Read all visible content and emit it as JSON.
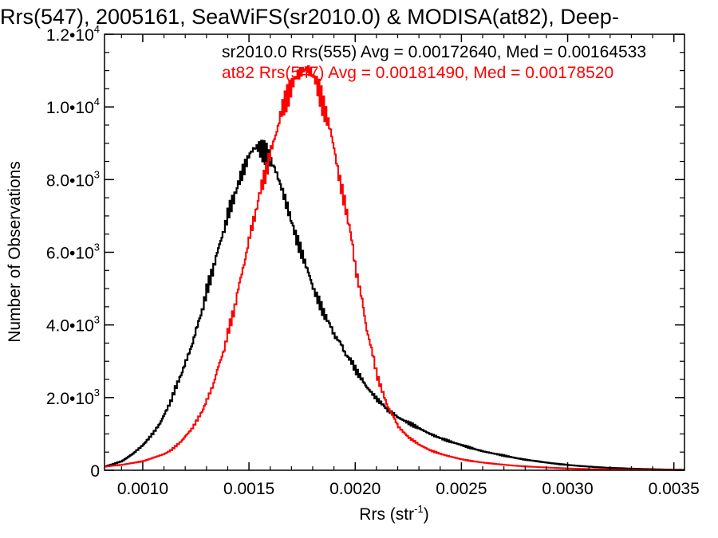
{
  "chart_data": {
    "type": "line",
    "title": "Rrs(547), 2005161, SeaWiFS(sr2010.0) & MODISA(at82), Deep-",
    "xlabel": "Rrs (str",
    "xlabel_sup": "-1",
    "xlabel_close": ")",
    "ylabel": "Number of Observations",
    "xlim": [
      0.00082,
      0.00355
    ],
    "ylim": [
      0,
      12000
    ],
    "x_ticks": [
      {
        "value": 0.001,
        "label": "0.0010"
      },
      {
        "value": 0.0015,
        "label": "0.0015"
      },
      {
        "value": 0.002,
        "label": "0.0020"
      },
      {
        "value": 0.0025,
        "label": "0.0025"
      },
      {
        "value": 0.003,
        "label": "0.0030"
      },
      {
        "value": 0.0035,
        "label": "0.0035"
      }
    ],
    "y_ticks": [
      {
        "value": 0,
        "mant": "0",
        "exp": ""
      },
      {
        "value": 2000,
        "mant": "2.0•10",
        "exp": "3"
      },
      {
        "value": 4000,
        "mant": "4.0•10",
        "exp": "3"
      },
      {
        "value": 6000,
        "mant": "6.0•10",
        "exp": "3"
      },
      {
        "value": 8000,
        "mant": "8.0•10",
        "exp": "3"
      },
      {
        "value": 10000,
        "mant": "1.0•10",
        "exp": "4"
      },
      {
        "value": 12000,
        "mant": "1.2•10",
        "exp": "4"
      }
    ],
    "legend": "top-right",
    "series": [
      {
        "name": "sr2010.0 Rrs(555) Avg = 0.00172640, Med = 0.00164533",
        "color": "#000000",
        "x": [
          0.00082,
          0.0009,
          0.00095,
          0.001,
          0.00105,
          0.00108,
          0.0011,
          0.00113,
          0.00115,
          0.00118,
          0.0012,
          0.00123,
          0.00125,
          0.00128,
          0.0013,
          0.00133,
          0.00135,
          0.00138,
          0.0014,
          0.00143,
          0.00145,
          0.00148,
          0.0015,
          0.00152,
          0.00154,
          0.00156,
          0.00158,
          0.0016,
          0.00162,
          0.00164,
          0.00166,
          0.00168,
          0.0017,
          0.00172,
          0.00175,
          0.00178,
          0.0018,
          0.00183,
          0.00185,
          0.00188,
          0.0019,
          0.00193,
          0.00195,
          0.00198,
          0.002,
          0.00203,
          0.00205,
          0.00208,
          0.0021,
          0.00213,
          0.00215,
          0.00218,
          0.0022,
          0.00225,
          0.0023,
          0.00235,
          0.0024,
          0.00245,
          0.0025,
          0.00255,
          0.0026,
          0.00265,
          0.0027,
          0.00275,
          0.0028,
          0.00285,
          0.0029,
          0.00295,
          0.003,
          0.00305,
          0.0031,
          0.00315,
          0.0032,
          0.00325,
          0.0033,
          0.00335,
          0.0034,
          0.00345,
          0.0035,
          0.00355
        ],
        "values": [
          100,
          250,
          450,
          700,
          1050,
          1300,
          1550,
          1900,
          2250,
          2650,
          3000,
          3450,
          3900,
          4450,
          5000,
          5550,
          6050,
          6600,
          7100,
          7550,
          7950,
          8400,
          8700,
          8850,
          8900,
          8800,
          8700,
          8500,
          8300,
          7950,
          7600,
          7200,
          6800,
          6400,
          5900,
          5400,
          5000,
          4600,
          4300,
          4000,
          3700,
          3500,
          3200,
          3000,
          2750,
          2500,
          2300,
          2100,
          1950,
          1800,
          1650,
          1550,
          1450,
          1300,
          1150,
          1000,
          880,
          780,
          690,
          600,
          520,
          460,
          400,
          340,
          290,
          250,
          210,
          175,
          145,
          120,
          100,
          80,
          65,
          55,
          45,
          35,
          28,
          20,
          15,
          10
        ]
      },
      {
        "name": "at82 Rrs(547) Avg = 0.00181490, Med = 0.00178520",
        "color": "#ff0000",
        "x": [
          0.00082,
          0.0009,
          0.00095,
          0.001,
          0.00105,
          0.0011,
          0.00113,
          0.00115,
          0.00118,
          0.0012,
          0.00123,
          0.00125,
          0.00128,
          0.0013,
          0.00133,
          0.00135,
          0.00138,
          0.0014,
          0.00143,
          0.00145,
          0.00148,
          0.0015,
          0.00153,
          0.00155,
          0.00158,
          0.0016,
          0.00163,
          0.00165,
          0.00168,
          0.0017,
          0.00172,
          0.00175,
          0.00177,
          0.00179,
          0.00181,
          0.00183,
          0.00185,
          0.00188,
          0.0019,
          0.00192,
          0.00195,
          0.00198,
          0.002,
          0.00203,
          0.00205,
          0.00208,
          0.0021,
          0.00213,
          0.00215,
          0.00218,
          0.0022,
          0.00225,
          0.0023,
          0.00235,
          0.0024,
          0.00245,
          0.0025,
          0.00255,
          0.0026,
          0.00265,
          0.0027,
          0.00275,
          0.0028,
          0.00285,
          0.0029,
          0.00295,
          0.003,
          0.00305,
          0.0031,
          0.0032,
          0.0033,
          0.0034,
          0.0035,
          0.00355
        ],
        "values": [
          100,
          150,
          200,
          250,
          350,
          450,
          550,
          650,
          800,
          950,
          1150,
          1350,
          1650,
          1950,
          2350,
          2800,
          3300,
          3850,
          4450,
          5100,
          5800,
          6450,
          7100,
          7700,
          8250,
          8800,
          9350,
          9900,
          10300,
          10600,
          10850,
          11000,
          11050,
          10950,
          10750,
          10400,
          9950,
          9400,
          8800,
          8100,
          7300,
          6400,
          5500,
          4700,
          3900,
          3200,
          2600,
          2100,
          1750,
          1450,
          1200,
          900,
          700,
          550,
          450,
          370,
          300,
          250,
          210,
          180,
          150,
          125,
          105,
          90,
          75,
          62,
          50,
          40,
          32,
          22,
          15,
          10,
          6,
          5
        ]
      }
    ]
  }
}
